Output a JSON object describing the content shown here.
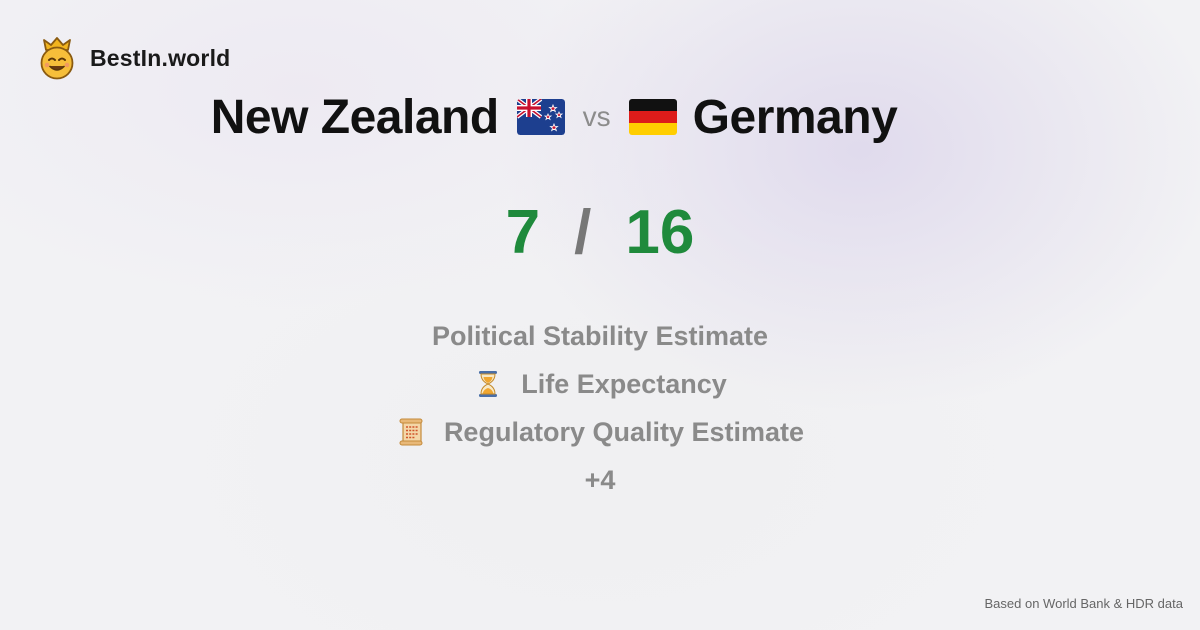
{
  "brand": {
    "name": "BestIn.world",
    "logo_icon": "crowned-smiley-icon"
  },
  "comparison": {
    "left_country": "New Zealand",
    "left_flag": "new-zealand-flag-icon",
    "vs_label": "vs",
    "right_country": "Germany",
    "right_flag": "germany-flag-icon"
  },
  "score": {
    "left": "7",
    "separator": "/",
    "right": "16",
    "color": "#1f8a3c"
  },
  "metrics": [
    {
      "icon": null,
      "label": "Political Stability Estimate"
    },
    {
      "icon": "hourglass-icon",
      "label": "Life Expectancy"
    },
    {
      "icon": "scroll-icon",
      "label": "Regulatory Quality Estimate"
    },
    {
      "icon": null,
      "label": "+4"
    }
  ],
  "footer": {
    "source_note": "Based on World Bank & HDR data"
  }
}
